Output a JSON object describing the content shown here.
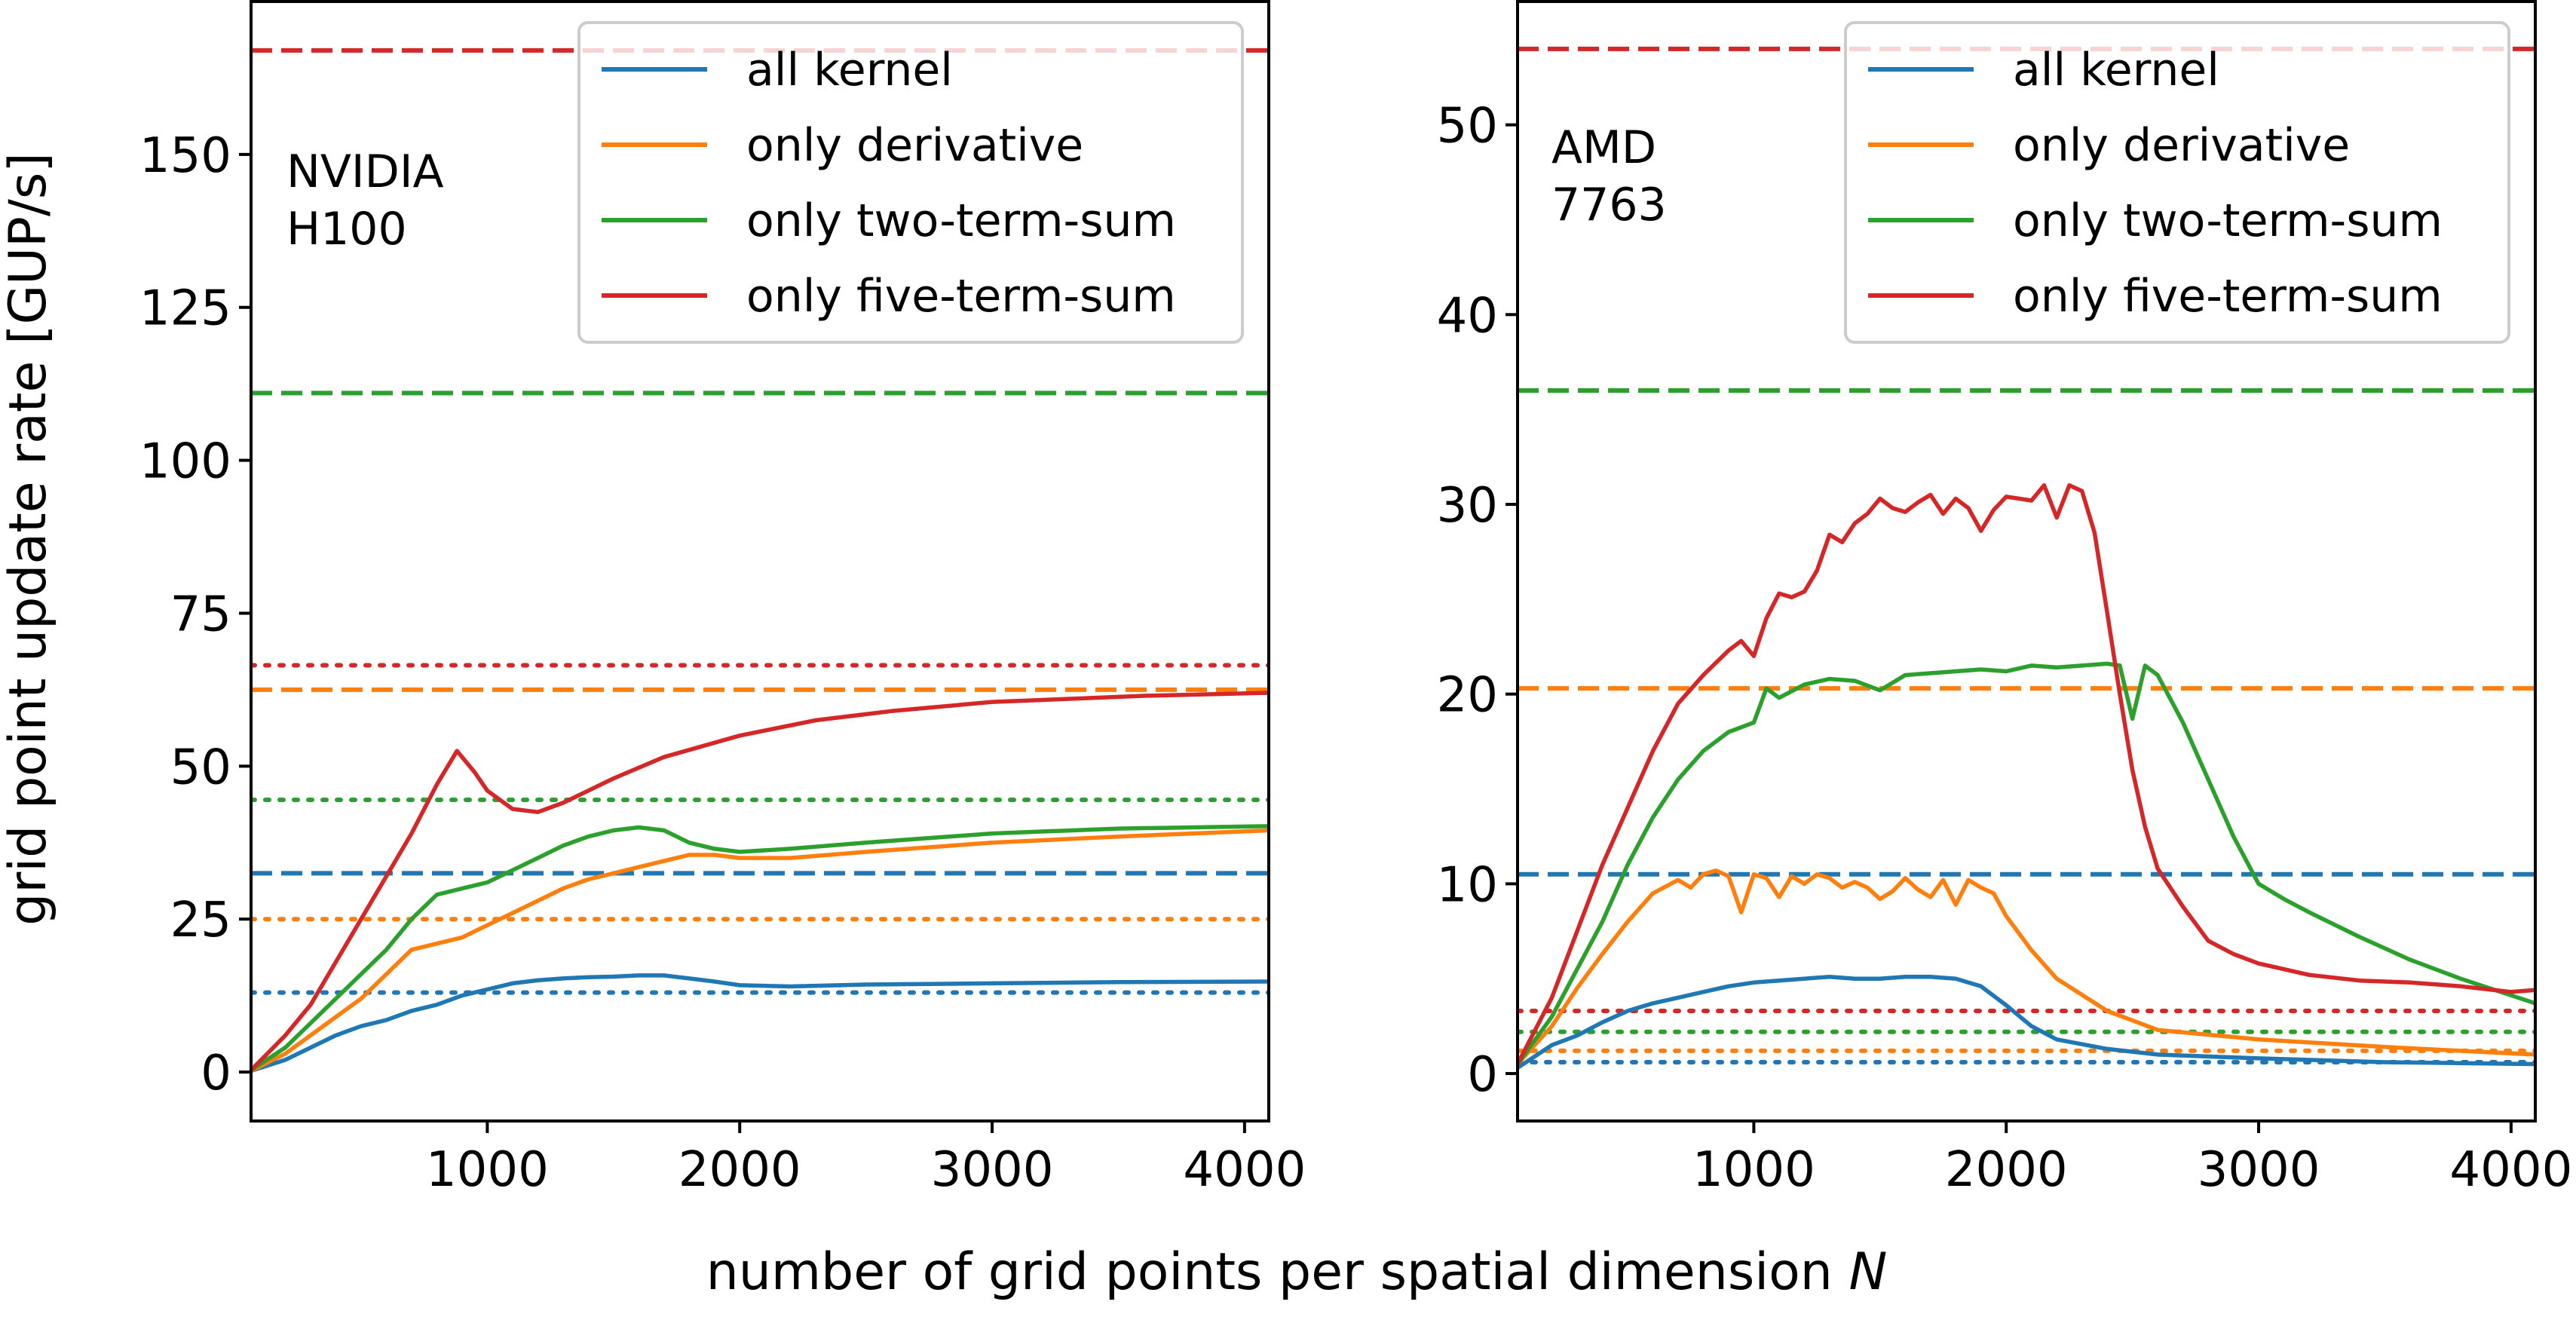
{
  "figure": {
    "shared_xlabel": "number of grid points per spatial dimension ",
    "shared_xlabel_italic": "N",
    "shared_ylabel": "grid point update rate [GUP/s]"
  },
  "legend_entries": [
    {
      "key": "all",
      "label": "all kernel",
      "color": "#1f77b4"
    },
    {
      "key": "deriv",
      "label": "only derivative",
      "color": "#ff7f0e"
    },
    {
      "key": "two",
      "label": "only two-term-sum",
      "color": "#2ca02c"
    },
    {
      "key": "five",
      "label": "only five-term-sum",
      "color": "#d62728"
    }
  ],
  "chart_data": [
    {
      "type": "line",
      "panel_label": [
        "NVIDIA",
        "H100"
      ],
      "xlim": [
        64,
        4096
      ],
      "ylim": [
        -8,
        175
      ],
      "xticks": [
        1000,
        2000,
        3000,
        4000
      ],
      "yticks": [
        0,
        25,
        50,
        75,
        100,
        125,
        150
      ],
      "xlabel": "number of grid points per spatial dimension N",
      "ylabel": "grid point update rate [GUP/s]",
      "legend": "top-right",
      "series": [
        {
          "name": "all kernel",
          "color": "#1f77b4",
          "style": "solid",
          "x": [
            64,
            200,
            300,
            400,
            500,
            600,
            700,
            800,
            900,
            1000,
            1100,
            1200,
            1300,
            1400,
            1500,
            1600,
            1700,
            1800,
            1900,
            2000,
            2200,
            2500,
            3000,
            3500,
            4096
          ],
          "y": [
            0.2,
            2,
            4,
            6,
            7.5,
            8.5,
            10,
            11,
            12.5,
            13.5,
            14.5,
            15,
            15.3,
            15.5,
            15.6,
            15.8,
            15.8,
            15.3,
            14.8,
            14.2,
            14,
            14.3,
            14.5,
            14.7,
            14.8
          ]
        },
        {
          "name": "only derivative",
          "color": "#ff7f0e",
          "style": "solid",
          "x": [
            64,
            200,
            300,
            400,
            500,
            600,
            700,
            800,
            900,
            1000,
            1100,
            1200,
            1300,
            1400,
            1500,
            1600,
            1700,
            1800,
            1900,
            2000,
            2200,
            2500,
            3000,
            3500,
            4096
          ],
          "y": [
            0.2,
            3,
            6,
            9,
            12,
            16,
            20,
            21,
            22,
            24,
            26,
            28,
            30,
            31.5,
            32.5,
            33.5,
            34.5,
            35.5,
            35.5,
            35,
            35,
            36,
            37.5,
            38.5,
            39.5
          ]
        },
        {
          "name": "only two-term-sum",
          "color": "#2ca02c",
          "style": "solid",
          "x": [
            64,
            200,
            300,
            400,
            500,
            600,
            700,
            800,
            900,
            1000,
            1100,
            1200,
            1300,
            1400,
            1500,
            1600,
            1700,
            1800,
            1900,
            2000,
            2200,
            2500,
            3000,
            3500,
            4096
          ],
          "y": [
            0.3,
            4,
            8,
            12,
            16,
            20,
            25,
            29,
            30,
            31,
            33,
            35,
            37,
            38.5,
            39.5,
            40,
            39.5,
            37.5,
            36.5,
            36,
            36.5,
            37.5,
            39,
            39.8,
            40.2
          ]
        },
        {
          "name": "only five-term-sum",
          "color": "#d62728",
          "style": "solid",
          "x": [
            64,
            200,
            300,
            400,
            500,
            600,
            700,
            800,
            880,
            950,
            1000,
            1100,
            1200,
            1300,
            1400,
            1500,
            1700,
            2000,
            2300,
            2600,
            3000,
            3300,
            3600,
            4096
          ],
          "y": [
            0.3,
            6,
            11,
            18,
            25,
            32,
            39,
            47,
            52.5,
            49,
            46,
            43,
            42.5,
            44,
            46,
            48,
            51.5,
            55,
            57.5,
            59,
            60.5,
            61,
            61.5,
            62
          ]
        }
      ],
      "reference_lines": [
        {
          "series": "only five-term-sum",
          "color": "#d62728",
          "style": "dashed",
          "y": 167
        },
        {
          "series": "only two-term-sum",
          "color": "#2ca02c",
          "style": "dashed",
          "y": 111
        },
        {
          "series": "only five-term-sum",
          "color": "#d62728",
          "style": "dotted",
          "y": 66.5
        },
        {
          "series": "only derivative",
          "color": "#ff7f0e",
          "style": "dashed",
          "y": 62.5
        },
        {
          "series": "only two-term-sum",
          "color": "#2ca02c",
          "style": "dotted",
          "y": 44.5
        },
        {
          "series": "all kernel",
          "color": "#1f77b4",
          "style": "dashed",
          "y": 32.5
        },
        {
          "series": "only derivative",
          "color": "#ff7f0e",
          "style": "dotted",
          "y": 25
        },
        {
          "series": "all kernel",
          "color": "#1f77b4",
          "style": "dotted",
          "y": 13
        }
      ]
    },
    {
      "type": "line",
      "panel_label": [
        "AMD",
        "7763"
      ],
      "xlim": [
        64,
        4096
      ],
      "ylim": [
        -2.5,
        56.5
      ],
      "xticks": [
        1000,
        2000,
        3000,
        4000
      ],
      "yticks": [
        0,
        10,
        20,
        30,
        40,
        50
      ],
      "xlabel": "number of grid points per spatial dimension N",
      "ylabel": "grid point update rate [GUP/s]",
      "legend": "top-right",
      "series": [
        {
          "name": "all kernel",
          "color": "#1f77b4",
          "style": "solid",
          "x": [
            64,
            200,
            300,
            400,
            500,
            600,
            700,
            800,
            900,
            1000,
            1100,
            1200,
            1300,
            1400,
            1500,
            1600,
            1700,
            1800,
            1900,
            2000,
            2100,
            2200,
            2400,
            2600,
            3000,
            3500,
            4096
          ],
          "y": [
            0.3,
            1.5,
            2,
            2.7,
            3.3,
            3.7,
            4,
            4.3,
            4.6,
            4.8,
            4.9,
            5,
            5.1,
            5,
            5,
            5.1,
            5.1,
            5,
            4.6,
            3.6,
            2.5,
            1.8,
            1.3,
            1,
            0.8,
            0.6,
            0.5
          ]
        },
        {
          "name": "only derivative",
          "color": "#ff7f0e",
          "style": "solid",
          "x": [
            64,
            200,
            300,
            400,
            500,
            600,
            700,
            750,
            800,
            850,
            900,
            950,
            1000,
            1050,
            1100,
            1150,
            1200,
            1250,
            1300,
            1350,
            1400,
            1450,
            1500,
            1550,
            1600,
            1650,
            1700,
            1750,
            1800,
            1850,
            1900,
            1950,
            2000,
            2100,
            2200,
            2400,
            2600,
            3000,
            3500,
            4096
          ],
          "y": [
            0.5,
            2.5,
            4.5,
            6.3,
            8,
            9.5,
            10.2,
            9.8,
            10.5,
            10.7,
            10.4,
            8.5,
            10.5,
            10.3,
            9.3,
            10.4,
            10,
            10.5,
            10.3,
            9.8,
            10.1,
            9.8,
            9.2,
            9.6,
            10.3,
            9.7,
            9.3,
            10.2,
            8.9,
            10.2,
            9.8,
            9.5,
            8.3,
            6.5,
            5,
            3.3,
            2.3,
            1.8,
            1.4,
            1
          ]
        },
        {
          "name": "only two-term-sum",
          "color": "#2ca02c",
          "style": "solid",
          "x": [
            64,
            200,
            300,
            400,
            500,
            600,
            700,
            800,
            900,
            1000,
            1050,
            1100,
            1200,
            1300,
            1400,
            1500,
            1600,
            1700,
            1800,
            1900,
            2000,
            2100,
            2200,
            2300,
            2400,
            2450,
            2500,
            2550,
            2600,
            2700,
            2800,
            2900,
            3000,
            3100,
            3200,
            3400,
            3600,
            3800,
            4096
          ],
          "y": [
            0.5,
            3,
            5.5,
            8,
            11,
            13.5,
            15.5,
            17,
            18,
            18.5,
            20.3,
            19.8,
            20.5,
            20.8,
            20.7,
            20.2,
            21,
            21.1,
            21.2,
            21.3,
            21.2,
            21.5,
            21.4,
            21.5,
            21.6,
            21.5,
            18.7,
            21.5,
            21,
            18.5,
            15.5,
            12.5,
            10,
            9.2,
            8.5,
            7.2,
            6,
            5,
            3.7
          ]
        },
        {
          "name": "only five-term-sum",
          "color": "#d62728",
          "style": "solid",
          "x": [
            64,
            200,
            300,
            400,
            500,
            600,
            700,
            800,
            900,
            950,
            1000,
            1050,
            1100,
            1150,
            1200,
            1250,
            1300,
            1350,
            1400,
            1450,
            1500,
            1550,
            1600,
            1650,
            1700,
            1750,
            1800,
            1850,
            1900,
            1950,
            2000,
            2050,
            2100,
            2150,
            2200,
            2250,
            2300,
            2350,
            2400,
            2450,
            2500,
            2550,
            2600,
            2700,
            2800,
            2900,
            3000,
            3100,
            3200,
            3400,
            3600,
            3800,
            4000,
            4096
          ],
          "y": [
            0.5,
            4,
            7.5,
            11,
            14,
            17,
            19.5,
            21,
            22.3,
            22.8,
            22,
            24,
            25.3,
            25.1,
            25.4,
            26.5,
            28.4,
            28,
            29,
            29.5,
            30.3,
            29.8,
            29.6,
            30.1,
            30.5,
            29.5,
            30.3,
            29.8,
            28.6,
            29.7,
            30.4,
            30.3,
            30.2,
            31,
            29.3,
            31,
            30.7,
            28.5,
            24.3,
            20,
            16,
            13,
            10.8,
            8.8,
            7,
            6.3,
            5.8,
            5.5,
            5.2,
            4.9,
            4.8,
            4.6,
            4.3,
            4.4
          ]
        }
      ],
      "reference_lines": [
        {
          "series": "only five-term-sum",
          "color": "#d62728",
          "style": "dashed",
          "y": 54
        },
        {
          "series": "only two-term-sum",
          "color": "#2ca02c",
          "style": "dashed",
          "y": 36
        },
        {
          "series": "only derivative",
          "color": "#ff7f0e",
          "style": "dashed",
          "y": 20.3
        },
        {
          "series": "all kernel",
          "color": "#1f77b4",
          "style": "dashed",
          "y": 10.5
        },
        {
          "series": "only five-term-sum",
          "color": "#d62728",
          "style": "dotted",
          "y": 3.3
        },
        {
          "series": "only two-term-sum",
          "color": "#2ca02c",
          "style": "dotted",
          "y": 2.2
        },
        {
          "series": "only derivative",
          "color": "#ff7f0e",
          "style": "dotted",
          "y": 1.2
        },
        {
          "series": "all kernel",
          "color": "#1f77b4",
          "style": "dotted",
          "y": 0.6
        }
      ]
    }
  ]
}
